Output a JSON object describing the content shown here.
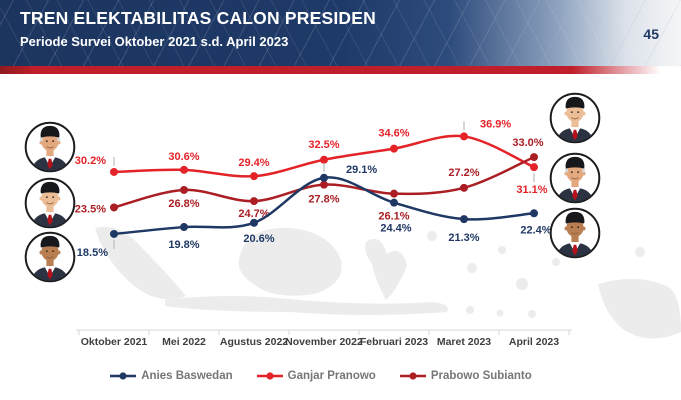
{
  "header": {
    "title": "TREN ELEKTABILITAS CALON PRESIDEN",
    "subtitle": "Periode Survei Oktober 2021 s.d. April 2023",
    "page_number": "45",
    "banner_color": "#1f3864",
    "accent_stripe_color": "#bf1e2a"
  },
  "chart_data": {
    "type": "line",
    "title": "Tren Elektabilitas Calon Presiden Oktober 2021 s.d. April 2023",
    "categories": [
      "Oktober 2021",
      "Mei 2022",
      "Agustus 2022",
      "November 2022",
      "Februari 2023",
      "Maret 2023",
      "April 2023"
    ],
    "series": [
      {
        "name": "Anies Baswedan",
        "color": "#1f3864",
        "values": [
          18.5,
          19.8,
          20.6,
          29.1,
          24.4,
          21.3,
          22.4
        ]
      },
      {
        "name": "Ganjar Pranowo",
        "color": "#e42329",
        "values": [
          30.2,
          30.6,
          29.4,
          32.5,
          34.6,
          36.9,
          31.1
        ]
      },
      {
        "name": "Prabowo Subianto",
        "color": "#aa1e24",
        "values": [
          23.5,
          26.8,
          24.7,
          27.8,
          26.1,
          27.2,
          33.0
        ]
      }
    ],
    "value_suffix": "%",
    "xlabel": "",
    "ylabel": "",
    "ylim": [
      0,
      45
    ],
    "grid": false,
    "legend_position": "bottom",
    "data_labels": true
  },
  "avatars": {
    "left": [
      {
        "person": "Ganjar Pranowo"
      },
      {
        "person": "Prabowo Subianto"
      },
      {
        "person": "Anies Baswedan"
      }
    ],
    "right": [
      {
        "person": "Prabowo Subianto"
      },
      {
        "person": "Ganjar Pranowo"
      },
      {
        "person": "Anies Baswedan"
      }
    ]
  }
}
